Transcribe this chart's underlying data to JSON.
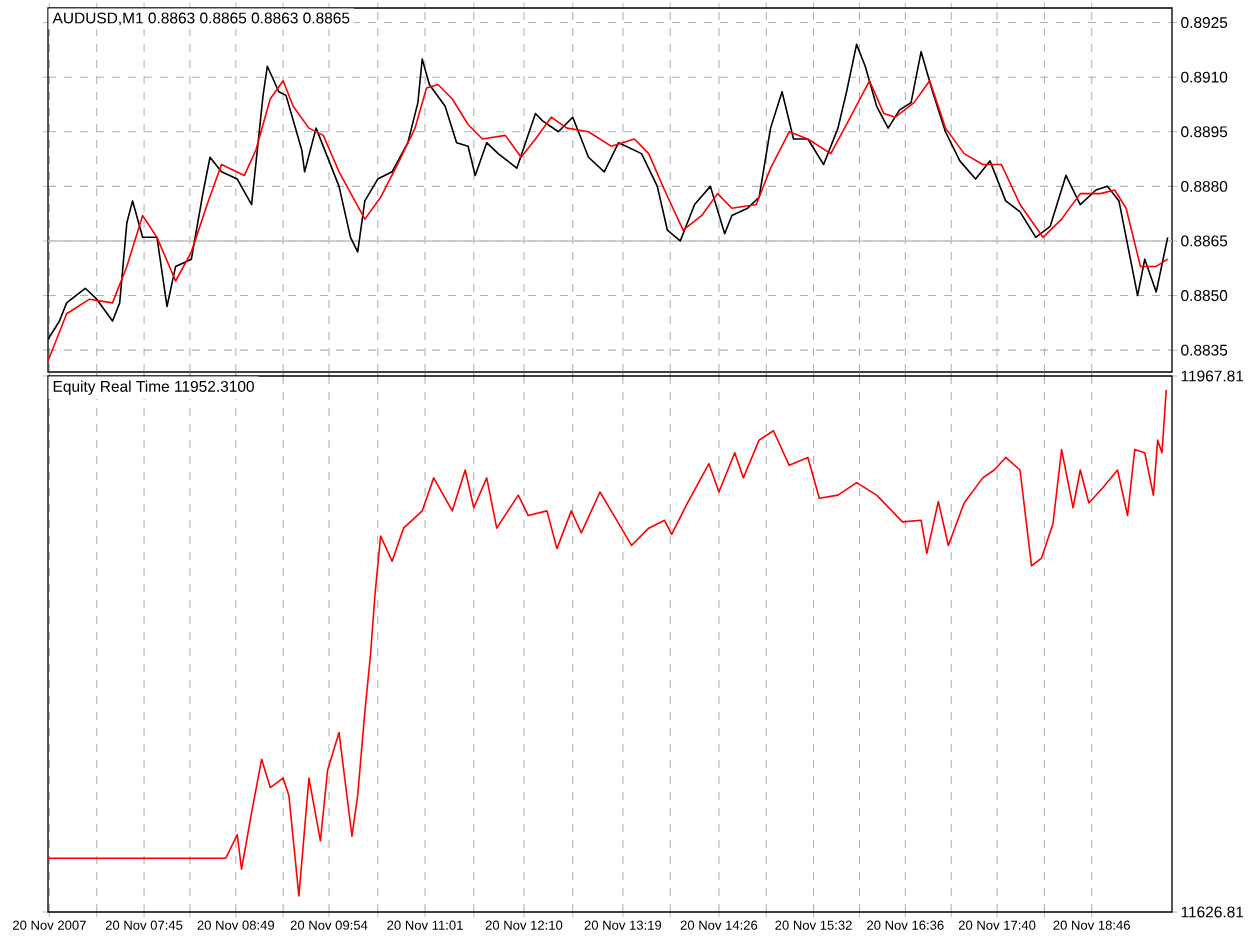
{
  "chart_data": [
    {
      "type": "line",
      "title": "AUDUSD,M1  0.8863 0.8865 0.8863 0.8865",
      "series": [
        {
          "color": "#000000",
          "x": [
            "2007-11-20T06:38",
            "2007-11-20T06:46",
            "2007-11-20T06:51",
            "2007-11-20T07:04",
            "2007-11-20T07:12",
            "2007-11-20T07:23",
            "2007-11-20T07:28",
            "2007-11-20T07:33",
            "2007-11-20T07:37",
            "2007-11-20T07:44",
            "2007-11-20T07:54",
            "2007-11-20T08:01",
            "2007-11-20T08:07",
            "2007-11-20T08:18",
            "2007-11-20T08:26",
            "2007-11-20T08:31",
            "2007-11-20T08:39",
            "2007-11-20T08:50",
            "2007-11-20T09:00",
            "2007-11-20T09:08",
            "2007-11-20T09:11",
            "2007-11-20T09:19",
            "2007-11-20T09:24",
            "2007-11-20T09:35",
            "2007-11-20T09:37",
            "2007-11-20T09:45",
            "2007-11-20T09:53",
            "2007-11-20T10:01",
            "2007-11-20T10:09",
            "2007-11-20T10:14",
            "2007-11-20T10:19",
            "2007-11-20T10:28",
            "2007-11-20T10:38",
            "2007-11-20T10:49",
            "2007-11-20T10:56",
            "2007-11-20T10:59",
            "2007-11-20T11:04",
            "2007-11-20T11:15",
            "2007-11-20T11:23",
            "2007-11-20T11:31",
            "2007-11-20T11:36",
            "2007-11-20T11:44",
            "2007-11-20T11:52",
            "2007-11-20T12:05",
            "2007-11-20T12:18",
            "2007-11-20T12:23",
            "2007-11-20T12:34",
            "2007-11-20T12:44",
            "2007-11-20T12:55",
            "2007-11-20T13:06",
            "2007-11-20T13:16",
            "2007-11-20T13:32",
            "2007-11-20T13:43",
            "2007-11-20T13:50",
            "2007-11-20T13:59",
            "2007-11-20T14:09",
            "2007-11-20T14:20",
            "2007-11-20T14:30",
            "2007-11-20T14:35",
            "2007-11-20T14:46",
            "2007-11-20T14:54",
            "2007-11-20T15:02",
            "2007-11-20T15:10",
            "2007-11-20T15:18",
            "2007-11-20T15:28",
            "2007-11-20T15:39",
            "2007-11-20T15:49",
            "2007-11-20T15:55",
            "2007-11-20T16:02",
            "2007-11-20T16:08",
            "2007-11-20T16:16",
            "2007-11-20T16:24",
            "2007-11-20T16:32",
            "2007-11-20T16:40",
            "2007-11-20T16:47",
            "2007-11-20T16:55",
            "2007-11-20T17:04",
            "2007-11-20T17:14",
            "2007-11-20T17:25",
            "2007-11-20T17:35",
            "2007-11-20T17:46",
            "2007-11-20T17:56",
            "2007-11-20T18:07",
            "2007-11-20T18:17",
            "2007-11-20T18:28",
            "2007-11-20T18:38",
            "2007-11-20T18:49",
            "2007-11-20T18:57",
            "2007-11-20T19:05",
            "2007-11-20T19:13",
            "2007-11-20T19:18",
            "2007-11-20T19:23",
            "2007-11-20T19:31",
            "2007-11-20T19:39"
          ],
          "values": [
            0.8838,
            0.8843,
            0.8848,
            0.8852,
            0.8849,
            0.8843,
            0.8848,
            0.887,
            0.8876,
            0.8866,
            0.8866,
            0.8847,
            0.8858,
            0.886,
            0.8878,
            0.8888,
            0.8884,
            0.8882,
            0.8875,
            0.8905,
            0.8913,
            0.8906,
            0.8905,
            0.889,
            0.8884,
            0.8896,
            0.8888,
            0.888,
            0.8866,
            0.8862,
            0.8876,
            0.8882,
            0.8884,
            0.8892,
            0.8903,
            0.8915,
            0.8908,
            0.8902,
            0.8892,
            0.8891,
            0.8883,
            0.8892,
            0.8889,
            0.8885,
            0.89,
            0.8898,
            0.8895,
            0.8899,
            0.8888,
            0.8884,
            0.8892,
            0.8889,
            0.888,
            0.8868,
            0.8865,
            0.8875,
            0.888,
            0.8867,
            0.8872,
            0.8874,
            0.8877,
            0.8896,
            0.8906,
            0.8893,
            0.8893,
            0.8886,
            0.8896,
            0.8906,
            0.8919,
            0.8913,
            0.8902,
            0.8896,
            0.8901,
            0.8903,
            0.8917,
            0.8906,
            0.8895,
            0.8887,
            0.8882,
            0.8887,
            0.8876,
            0.8873,
            0.8866,
            0.8869,
            0.8883,
            0.8875,
            0.8879,
            0.888,
            0.8876,
            0.886,
            0.885,
            0.886,
            0.8851,
            0.8866
          ]
        },
        {
          "color": "#ff0000",
          "x": [
            "2007-11-20T06:38",
            "2007-11-20T06:51",
            "2007-11-20T07:07",
            "2007-11-20T07:23",
            "2007-11-20T07:33",
            "2007-11-20T07:44",
            "2007-11-20T07:54",
            "2007-11-20T08:07",
            "2007-11-20T08:18",
            "2007-11-20T08:29",
            "2007-11-20T08:39",
            "2007-11-20T08:55",
            "2007-11-20T09:03",
            "2007-11-20T09:13",
            "2007-11-20T09:22",
            "2007-11-20T09:29",
            "2007-11-20T09:40",
            "2007-11-20T09:50",
            "2007-11-20T10:01",
            "2007-11-20T10:19",
            "2007-11-20T10:30",
            "2007-11-20T10:43",
            "2007-11-20T10:54",
            "2007-11-20T11:02",
            "2007-11-20T11:10",
            "2007-11-20T11:20",
            "2007-11-20T11:31",
            "2007-11-20T11:41",
            "2007-11-20T11:57",
            "2007-11-20T12:08",
            "2007-11-20T12:18",
            "2007-11-20T12:29",
            "2007-11-20T12:40",
            "2007-11-20T12:55",
            "2007-11-20T13:11",
            "2007-11-20T13:27",
            "2007-11-20T13:37",
            "2007-11-20T13:48",
            "2007-11-20T14:01",
            "2007-11-20T14:14",
            "2007-11-20T14:25",
            "2007-11-20T14:35",
            "2007-11-20T14:52",
            "2007-11-20T15:02",
            "2007-11-20T15:15",
            "2007-11-20T15:28",
            "2007-11-20T15:44",
            "2007-11-20T15:55",
            "2007-11-20T16:11",
            "2007-11-20T16:21",
            "2007-11-20T16:29",
            "2007-11-20T16:42",
            "2007-11-20T16:53",
            "2007-11-20T17:04",
            "2007-11-20T17:17",
            "2007-11-20T17:30",
            "2007-11-20T17:43",
            "2007-11-20T17:56",
            "2007-11-20T18:12",
            "2007-11-20T18:25",
            "2007-11-20T18:38",
            "2007-11-20T18:52",
            "2007-11-20T19:02",
            "2007-11-20T19:10",
            "2007-11-20T19:20",
            "2007-11-20T19:31",
            "2007-11-20T19:39"
          ],
          "values": [
            0.8832,
            0.8845,
            0.8849,
            0.8848,
            0.8858,
            0.8872,
            0.8866,
            0.8854,
            0.8862,
            0.8875,
            0.8886,
            0.8883,
            0.889,
            0.8904,
            0.8909,
            0.8902,
            0.8896,
            0.8894,
            0.8884,
            0.8871,
            0.8877,
            0.8887,
            0.8896,
            0.8907,
            0.8908,
            0.8904,
            0.8897,
            0.8893,
            0.8894,
            0.8888,
            0.8893,
            0.8899,
            0.8896,
            0.8895,
            0.8891,
            0.8893,
            0.8889,
            0.8879,
            0.8868,
            0.8872,
            0.8878,
            0.8874,
            0.8875,
            0.8885,
            0.8895,
            0.8893,
            0.8889,
            0.8897,
            0.8909,
            0.89,
            0.8899,
            0.8903,
            0.8909,
            0.8896,
            0.8889,
            0.8886,
            0.8886,
            0.8875,
            0.8866,
            0.8871,
            0.8878,
            0.8878,
            0.8879,
            0.8874,
            0.8858,
            0.8858,
            0.886
          ]
        }
      ],
      "xlim": [
        "2007-11-20T06:38",
        "2007-11-20T19:42"
      ],
      "ylim": [
        0.8829,
        0.8929
      ],
      "xticks": [
        "2007-11-20T06:39",
        "2007-11-20T07:12",
        "2007-11-20T07:45",
        "2007-11-20T08:17",
        "2007-11-20T08:49",
        "2007-11-20T09:22",
        "2007-11-20T09:54",
        "2007-11-20T10:28",
        "2007-11-20T11:01",
        "2007-11-20T11:35",
        "2007-11-20T12:10",
        "2007-11-20T12:44",
        "2007-11-20T13:19",
        "2007-11-20T13:52",
        "2007-11-20T14:26",
        "2007-11-20T14:59",
        "2007-11-20T15:32",
        "2007-11-20T16:04",
        "2007-11-20T16:36",
        "2007-11-20T17:08",
        "2007-11-20T17:40",
        "2007-11-20T18:13",
        "2007-11-20T18:46"
      ],
      "yticks": [
        {
          "value": 0.8835,
          "label": "0.8835"
        },
        {
          "value": 0.885,
          "label": "0.8850"
        },
        {
          "value": 0.8865,
          "label": "0.8865"
        },
        {
          "value": 0.888,
          "label": "0.8880"
        },
        {
          "value": 0.8895,
          "label": "0.8895"
        },
        {
          "value": 0.891,
          "label": "0.8910"
        },
        {
          "value": 0.8925,
          "label": "0.8925"
        }
      ],
      "ref_lines": [
        {
          "axis": "y",
          "value": 0.8865,
          "color": "#c0c0c0"
        }
      ],
      "grid": true,
      "tick_labels": "y"
    },
    {
      "type": "line",
      "title": "Equity Real Time 11952.3100",
      "series": [
        {
          "color": "#ff0000",
          "x": [
            "2007-11-20T06:38",
            "2007-11-20T08:42",
            "2007-11-20T08:50",
            "2007-11-20T08:53",
            "2007-11-20T09:00",
            "2007-11-20T09:07",
            "2007-11-20T09:13",
            "2007-11-20T09:22",
            "2007-11-20T09:26",
            "2007-11-20T09:33",
            "2007-11-20T09:40",
            "2007-11-20T09:48",
            "2007-11-20T09:53",
            "2007-11-20T10:01",
            "2007-11-20T10:10",
            "2007-11-20T10:14",
            "2007-11-20T10:19",
            "2007-11-20T10:23",
            "2007-11-20T10:26",
            "2007-11-20T10:30",
            "2007-11-20T10:38",
            "2007-11-20T10:46",
            "2007-11-20T10:59",
            "2007-11-20T11:07",
            "2007-11-20T11:20",
            "2007-11-20T11:29",
            "2007-11-20T11:35",
            "2007-11-20T11:44",
            "2007-11-20T11:51",
            "2007-11-20T12:06",
            "2007-11-20T12:13",
            "2007-11-20T12:26",
            "2007-11-20T12:33",
            "2007-11-20T12:43",
            "2007-11-20T12:50",
            "2007-11-20T13:03",
            "2007-11-20T13:16",
            "2007-11-20T13:25",
            "2007-11-20T13:37",
            "2007-11-20T13:48",
            "2007-11-20T13:53",
            "2007-11-20T14:04",
            "2007-11-20T14:19",
            "2007-11-20T14:26",
            "2007-11-20T14:37",
            "2007-11-20T14:43",
            "2007-11-20T14:54",
            "2007-11-20T15:04",
            "2007-11-20T15:15",
            "2007-11-20T15:28",
            "2007-11-20T15:36",
            "2007-11-20T15:49",
            "2007-11-20T16:02",
            "2007-11-20T16:16",
            "2007-11-20T16:34",
            "2007-11-20T16:47",
            "2007-11-20T16:51",
            "2007-11-20T16:59",
            "2007-11-20T17:06",
            "2007-11-20T17:17",
            "2007-11-20T17:30",
            "2007-11-20T17:38",
            "2007-11-20T17:46",
            "2007-11-20T17:56",
            "2007-11-20T18:04",
            "2007-11-20T18:11",
            "2007-11-20T18:19",
            "2007-11-20T18:25",
            "2007-11-20T18:33",
            "2007-11-20T18:38",
            "2007-11-20T18:44",
            "2007-11-20T18:54",
            "2007-11-20T19:04",
            "2007-11-20T19:11",
            "2007-11-20T19:16",
            "2007-11-20T19:23",
            "2007-11-20T19:29",
            "2007-11-20T19:32",
            "2007-11-20T19:35",
            "2007-11-20T19:38"
          ],
          "values": [
            11661,
            11661,
            11676,
            11654,
            11690,
            11724,
            11706,
            11712,
            11701,
            11637,
            11712,
            11672,
            11717,
            11741,
            11675,
            11701,
            11754,
            11791,
            11828,
            11866,
            11850,
            11871,
            11882,
            11903,
            11882,
            11908,
            11884,
            11903,
            11871,
            11892,
            11879,
            11882,
            11858,
            11882,
            11868,
            11894,
            11874,
            11860,
            11871,
            11876,
            11867,
            11887,
            11912,
            11894,
            11919,
            11903,
            11927,
            11933,
            11911,
            11916,
            11890,
            11892,
            11900,
            11892,
            11875,
            11876,
            11855,
            11888,
            11860,
            11887,
            11903,
            11908,
            11916,
            11908,
            11847,
            11852,
            11874,
            11921,
            11884,
            11908,
            11887,
            11897,
            11908,
            11879,
            11921,
            11919,
            11892,
            11927,
            11919,
            11959
          ]
        }
      ],
      "xlim": [
        "2007-11-20T06:38",
        "2007-11-20T19:42"
      ],
      "ylim": [
        11626.81,
        11967.81
      ],
      "xticks": [
        {
          "value": "2007-11-20T06:39",
          "label": "20 Nov 2007"
        },
        {
          "value": "2007-11-20T07:12",
          "label": null
        },
        {
          "value": "2007-11-20T07:45",
          "label": "20 Nov 07:45"
        },
        {
          "value": "2007-11-20T08:17",
          "label": null
        },
        {
          "value": "2007-11-20T08:49",
          "label": "20 Nov 08:49"
        },
        {
          "value": "2007-11-20T09:22",
          "label": null
        },
        {
          "value": "2007-11-20T09:54",
          "label": "20 Nov 09:54"
        },
        {
          "value": "2007-11-20T10:28",
          "label": null
        },
        {
          "value": "2007-11-20T11:01",
          "label": "20 Nov 11:01"
        },
        {
          "value": "2007-11-20T11:35",
          "label": null
        },
        {
          "value": "2007-11-20T12:10",
          "label": "20 Nov 12:10"
        },
        {
          "value": "2007-11-20T12:44",
          "label": null
        },
        {
          "value": "2007-11-20T13:19",
          "label": "20 Nov 13:19"
        },
        {
          "value": "2007-11-20T13:52",
          "label": null
        },
        {
          "value": "2007-11-20T14:26",
          "label": "20 Nov 14:26"
        },
        {
          "value": "2007-11-20T14:59",
          "label": null
        },
        {
          "value": "2007-11-20T15:32",
          "label": "20 Nov 15:32"
        },
        {
          "value": "2007-11-20T16:04",
          "label": null
        },
        {
          "value": "2007-11-20T16:36",
          "label": "20 Nov 16:36"
        },
        {
          "value": "2007-11-20T17:08",
          "label": null
        },
        {
          "value": "2007-11-20T17:40",
          "label": "20 Nov 17:40"
        },
        {
          "value": "2007-11-20T18:13",
          "label": null
        },
        {
          "value": "2007-11-20T18:46",
          "label": "20 Nov 18:46"
        }
      ],
      "yticks": [
        11626.81,
        11967.81
      ],
      "grid": "x"
    }
  ]
}
